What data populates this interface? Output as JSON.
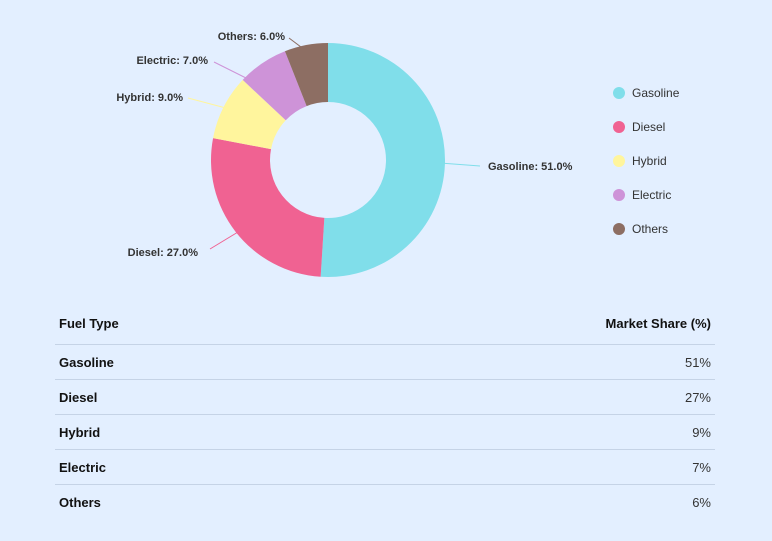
{
  "chart_data": {
    "type": "pie",
    "donut": true,
    "categories": [
      "Gasoline",
      "Diesel",
      "Hybrid",
      "Electric",
      "Others"
    ],
    "values": [
      51.0,
      27.0,
      9.0,
      7.0,
      6.0
    ],
    "slice_labels": [
      "Gasoline: 51.0%",
      "Diesel: 27.0%",
      "Hybrid: 9.0%",
      "Electric: 7.0%",
      "Others: 6.0%"
    ],
    "colors": [
      "#80deea",
      "#f06292",
      "#fff59d",
      "#ce93d8",
      "#8d6e63"
    ],
    "legend_position": "right"
  },
  "table": {
    "headers": [
      "Fuel Type",
      "Market Share (%)"
    ],
    "rows": [
      [
        "Gasoline",
        "51%"
      ],
      [
        "Diesel",
        "27%"
      ],
      [
        "Hybrid",
        "9%"
      ],
      [
        "Electric",
        "7%"
      ],
      [
        "Others",
        "6%"
      ]
    ]
  }
}
